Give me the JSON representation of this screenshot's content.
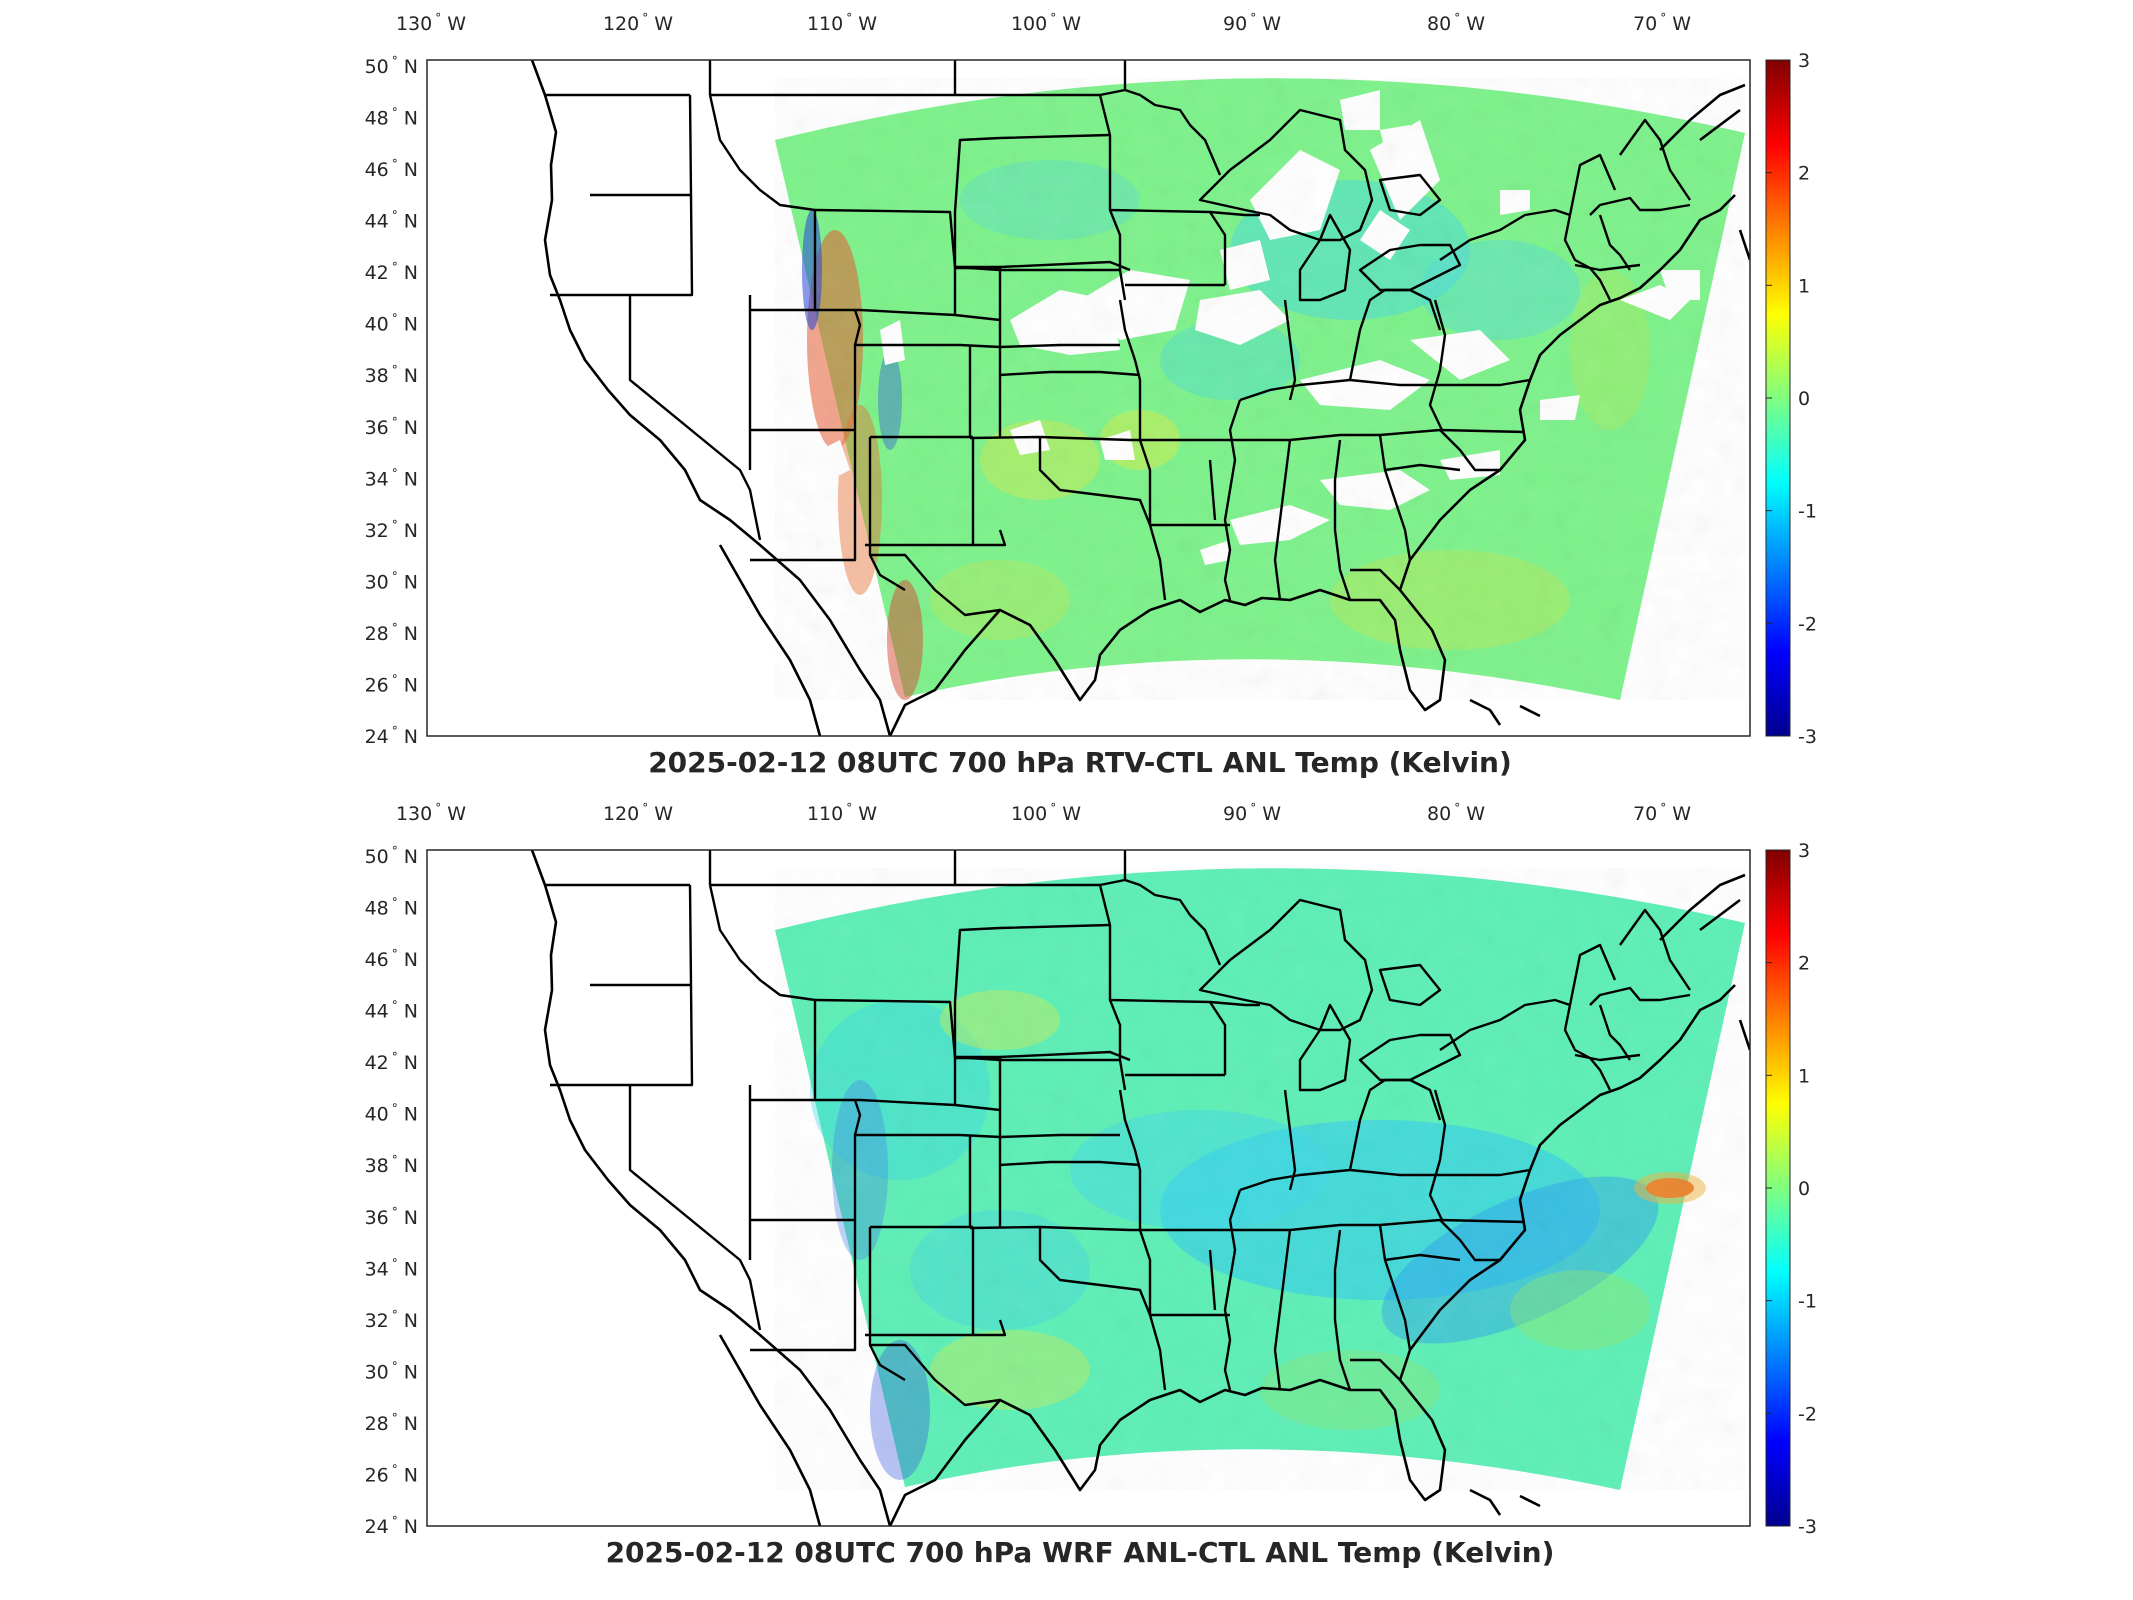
{
  "panels": [
    {
      "title": "2025-02-12 08UTC 700 hPa RTV-CTL ANL Temp (Kelvin)",
      "variant": "rtv",
      "background_color": "#7cf28a"
    },
    {
      "title": "2025-02-12 08UTC 700 hPa WRF ANL-CTL ANL Temp (Kelvin)",
      "variant": "wrf",
      "background_color": "#5cefb6"
    }
  ],
  "map": {
    "projection": "lambert-conformal",
    "lon_range": [
      -132,
      -66
    ],
    "lat_range": [
      24,
      50
    ],
    "lon_ticks": [
      {
        "value": "130",
        "hemi": "W"
      },
      {
        "value": "120",
        "hemi": "W"
      },
      {
        "value": "110",
        "hemi": "W"
      },
      {
        "value": "100",
        "hemi": "W"
      },
      {
        "value": "90",
        "hemi": "W"
      },
      {
        "value": "80",
        "hemi": "W"
      },
      {
        "value": "70",
        "hemi": "W"
      }
    ],
    "lat_ticks": [
      {
        "value": "50",
        "hemi": "N"
      },
      {
        "value": "48",
        "hemi": "N"
      },
      {
        "value": "46",
        "hemi": "N"
      },
      {
        "value": "44",
        "hemi": "N"
      },
      {
        "value": "42",
        "hemi": "N"
      },
      {
        "value": "40",
        "hemi": "N"
      },
      {
        "value": "38",
        "hemi": "N"
      },
      {
        "value": "36",
        "hemi": "N"
      },
      {
        "value": "34",
        "hemi": "N"
      },
      {
        "value": "32",
        "hemi": "N"
      },
      {
        "value": "30",
        "hemi": "N"
      },
      {
        "value": "28",
        "hemi": "N"
      },
      {
        "value": "26",
        "hemi": "N"
      },
      {
        "value": "24",
        "hemi": "N"
      }
    ]
  },
  "colorbar": {
    "colormap": "jet",
    "range": [
      -3,
      3
    ],
    "ticks": [
      "3",
      "2",
      "1",
      "0",
      "-1",
      "-2",
      "-3"
    ],
    "colors": [
      "#00008f",
      "#0000ff",
      "#0080ff",
      "#00ffff",
      "#80ff80",
      "#ffff00",
      "#ff8000",
      "#ff0000",
      "#800000"
    ]
  }
}
